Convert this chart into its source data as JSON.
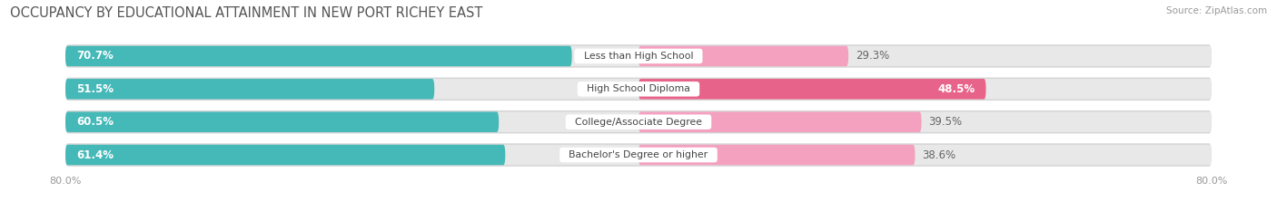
{
  "title": "OCCUPANCY BY EDUCATIONAL ATTAINMENT IN NEW PORT RICHEY EAST",
  "source": "Source: ZipAtlas.com",
  "categories": [
    "Less than High School",
    "High School Diploma",
    "College/Associate Degree",
    "Bachelor's Degree or higher"
  ],
  "owner_values": [
    70.7,
    51.5,
    60.5,
    61.4
  ],
  "renter_values": [
    29.3,
    48.5,
    39.5,
    38.6
  ],
  "owner_color": "#45b8b8",
  "renter_color_1": "#f48fb1",
  "renter_color_2": "#f06292",
  "bar_bg_color": "#e0e0e0",
  "axis_left_label": "80.0%",
  "axis_right_label": "80.0%",
  "title_fontsize": 10.5,
  "label_fontsize": 8.5,
  "bar_height": 0.62,
  "background_color": "#ffffff",
  "renter_colors": [
    "#f5a8c5",
    "#e8638a",
    "#f5a8c5",
    "#f5a8c5"
  ]
}
